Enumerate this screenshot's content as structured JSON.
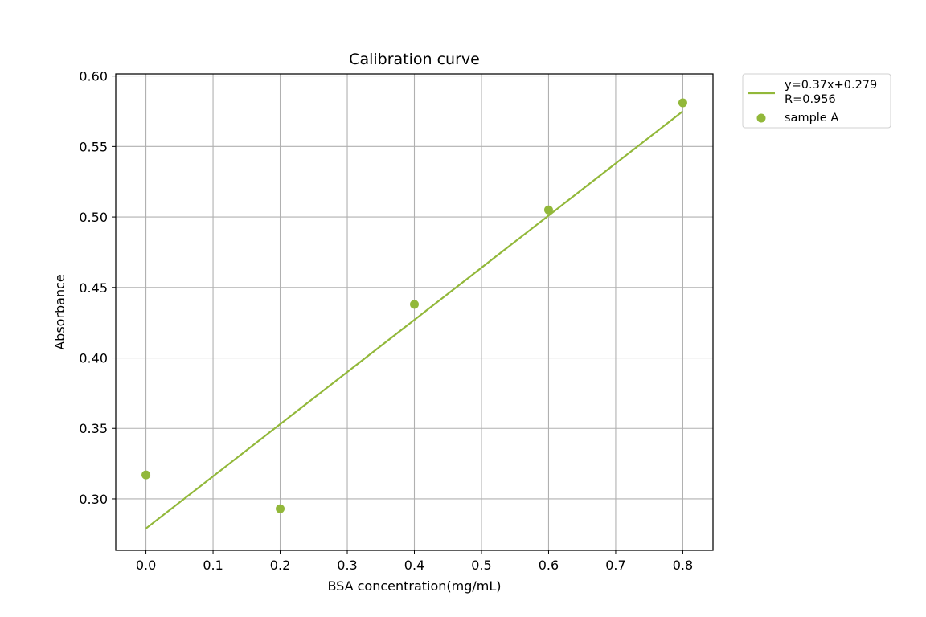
{
  "chart_data": {
    "type": "scatter",
    "title": "Calibration curve",
    "xlabel": "BSA concentration(mg/mL)",
    "ylabel": "Absorbance",
    "xlim": [
      -0.045,
      0.845
    ],
    "ylim": [
      0.2635,
      0.6015
    ],
    "xticks": [
      0.0,
      0.1,
      0.2,
      0.3,
      0.4,
      0.5,
      0.6,
      0.7,
      0.8
    ],
    "xtick_labels": [
      "0.0",
      "0.1",
      "0.2",
      "0.3",
      "0.4",
      "0.5",
      "0.6",
      "0.7",
      "0.8"
    ],
    "yticks": [
      0.3,
      0.35,
      0.4,
      0.45,
      0.5,
      0.55,
      0.6
    ],
    "ytick_labels": [
      "0.30",
      "0.35",
      "0.40",
      "0.45",
      "0.50",
      "0.55",
      "0.60"
    ],
    "grid": true,
    "legend_position": "outside-top-right",
    "color": "#92b83a",
    "series": [
      {
        "kind": "scatter",
        "name": "sample A",
        "x": [
          0.0,
          0.2,
          0.4,
          0.6,
          0.8
        ],
        "y": [
          0.317,
          0.293,
          0.438,
          0.505,
          0.581
        ]
      },
      {
        "kind": "line",
        "name": "y=0.37x+0.279\nR=0.956",
        "label_lines": [
          "y=0.37x+0.279",
          "R=0.956"
        ],
        "slope": 0.37,
        "intercept": 0.279,
        "x": [
          0.0,
          0.8
        ]
      }
    ]
  }
}
